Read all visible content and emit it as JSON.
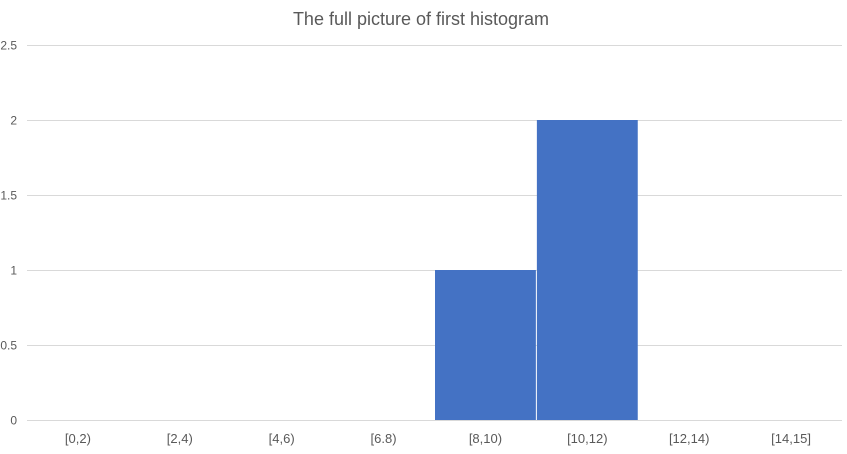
{
  "chart_data": {
    "type": "bar",
    "title": "The full picture of first histogram",
    "categories": [
      "[0,2)",
      "[2,4)",
      "[4,6)",
      "[6.8)",
      "[8,10)",
      "[10,12)",
      "[12,14)",
      "[14,15]"
    ],
    "values": [
      0,
      0,
      0,
      0,
      1,
      2,
      0,
      0
    ],
    "ylim": [
      0,
      2.5
    ],
    "yticks": [
      "0",
      "0.5",
      "1",
      "1.5",
      "2",
      "2.5"
    ],
    "xlabel": "",
    "ylabel": "",
    "grid": true,
    "legend": "none",
    "bar_color": "#4472C4",
    "gridline_color": "#D9D9D9"
  }
}
